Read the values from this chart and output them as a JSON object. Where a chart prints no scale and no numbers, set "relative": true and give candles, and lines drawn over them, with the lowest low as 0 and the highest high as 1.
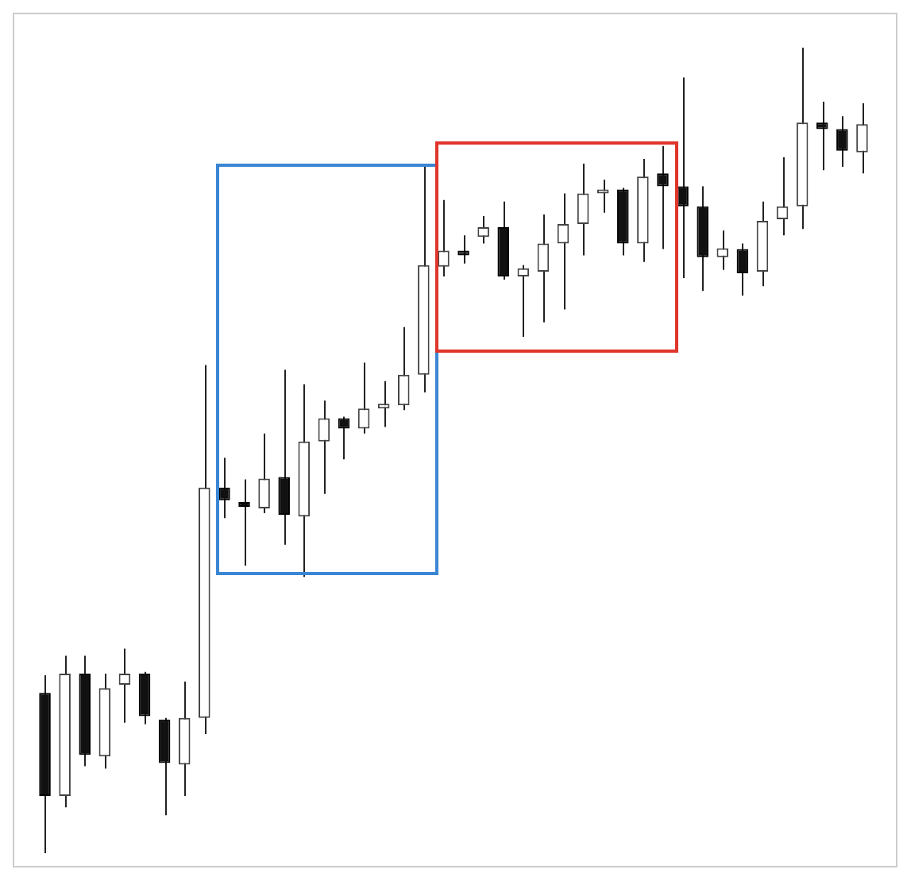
{
  "chart_data": {
    "type": "candlestick",
    "relative": true,
    "grid": false,
    "legend": false,
    "tick_labels": false,
    "categories": [
      null,
      null,
      null,
      null,
      null,
      null,
      null,
      null,
      null,
      null,
      null,
      null,
      null,
      null,
      null,
      null,
      null,
      null,
      null,
      null,
      null,
      null,
      null,
      null,
      null,
      null,
      null,
      null,
      null,
      null,
      null,
      null,
      null,
      null,
      null,
      null,
      null,
      null,
      null,
      null,
      null,
      null
    ],
    "ohlc": [
      [
        0.199,
        0.221,
        0,
        0.071
      ],
      [
        0.071,
        0.245,
        0.057,
        0.223
      ],
      [
        0.223,
        0.245,
        0.108,
        0.122
      ],
      [
        0.12,
        0.223,
        0.105,
        0.205
      ],
      [
        0.209,
        0.254,
        0.162,
        0.223
      ],
      [
        0.223,
        0.225,
        0.16,
        0.17
      ],
      [
        0.166,
        0.168,
        0.047,
        0.112
      ],
      [
        0.11,
        0.213,
        0.071,
        0.168
      ],
      [
        0.168,
        0.606,
        0.148,
        0.454
      ],
      [
        0.454,
        0.491,
        0.416,
        0.438
      ],
      [
        0.436,
        0.464,
        0.357,
        0.43
      ],
      [
        0.428,
        0.521,
        0.422,
        0.465
      ],
      [
        0.467,
        0.6,
        0.383,
        0.42
      ],
      [
        0.418,
        0.582,
        0.343,
        0.511
      ],
      [
        0.511,
        0.562,
        0.446,
        0.54
      ],
      [
        0.54,
        0.542,
        0.489,
        0.527
      ],
      [
        0.527,
        0.609,
        0.521,
        0.552
      ],
      [
        0.552,
        0.586,
        0.529,
        0.558
      ],
      [
        0.556,
        0.653,
        0.55,
        0.594
      ],
      [
        0.594,
        0.856,
        0.572,
        0.73
      ],
      [
        0.728,
        0.811,
        0.716,
        0.748
      ],
      [
        0.748,
        0.767,
        0.732,
        0.742
      ],
      [
        0.765,
        0.791,
        0.757,
        0.777
      ],
      [
        0.777,
        0.809,
        0.712,
        0.716
      ],
      [
        0.716,
        0.73,
        0.641,
        0.726
      ],
      [
        0.722,
        0.793,
        0.659,
        0.757
      ],
      [
        0.757,
        0.819,
        0.675,
        0.781
      ],
      [
        0.781,
        0.856,
        0.742,
        0.819
      ],
      [
        0.819,
        0.836,
        0.795,
        0.824
      ],
      [
        0.824,
        0.826,
        0.742,
        0.757
      ],
      [
        0.757,
        0.862,
        0.734,
        0.84
      ],
      [
        0.844,
        0.878,
        0.75,
        0.828
      ],
      [
        0.828,
        0.963,
        0.714,
        0.803
      ],
      [
        0.803,
        0.828,
        0.698,
        0.74
      ],
      [
        0.74,
        0.773,
        0.724,
        0.751
      ],
      [
        0.75,
        0.757,
        0.692,
        0.72
      ],
      [
        0.722,
        0.809,
        0.704,
        0.785
      ],
      [
        0.787,
        0.864,
        0.767,
        0.803
      ],
      [
        0.803,
        1.0,
        0.775,
        0.907
      ],
      [
        0.907,
        0.933,
        0.848,
        0.899
      ],
      [
        0.899,
        0.915,
        0.852,
        0.872
      ],
      [
        0.87,
        0.931,
        0.844,
        0.905
      ]
    ]
  }
}
